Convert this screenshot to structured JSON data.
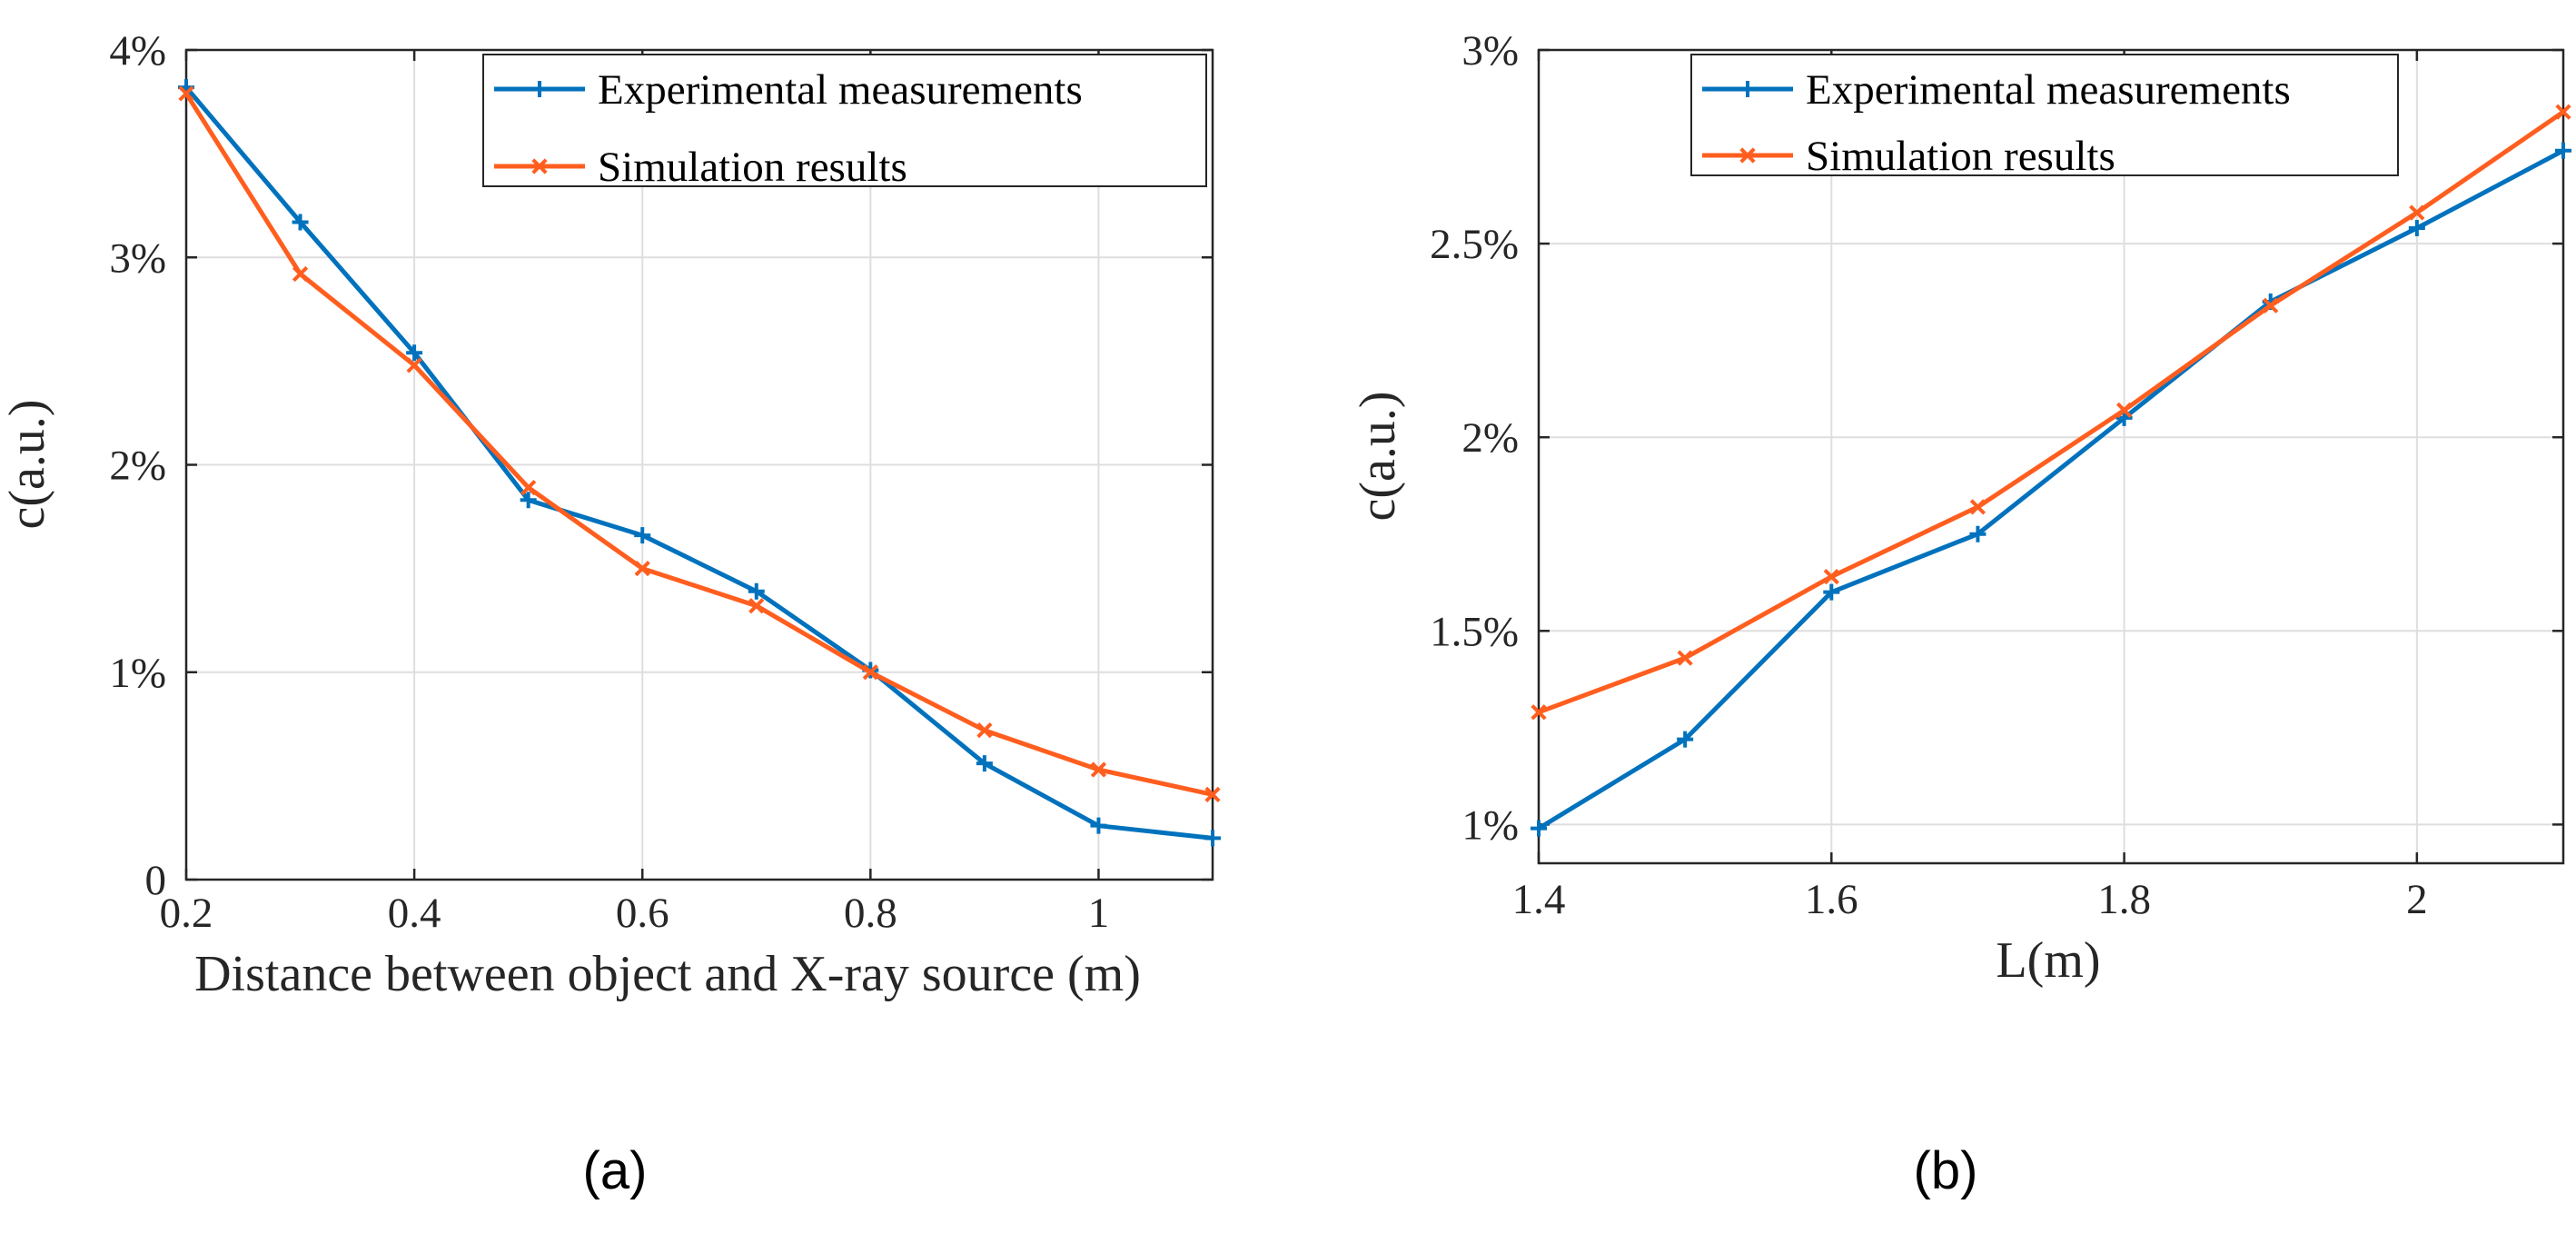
{
  "chart_data": [
    {
      "type": "line",
      "caption": "(a)",
      "title": "",
      "xlabel": "Distance between object and X-ray source (m)",
      "ylabel": "c(a.u.)",
      "xlim": [
        0.2,
        1.1
      ],
      "ylim": [
        0,
        4
      ],
      "xticks": [
        0.2,
        0.4,
        0.6,
        0.8,
        1.0
      ],
      "xtick_labels": [
        "0.2",
        "0.4",
        "0.6",
        "0.8",
        "1"
      ],
      "yticks": [
        0,
        1,
        2,
        3,
        4
      ],
      "ytick_labels": [
        "0",
        "1%",
        "2%",
        "3%",
        "4%"
      ],
      "grid": true,
      "legend_position": "top-right",
      "x": [
        0.2,
        0.3,
        0.4,
        0.5,
        0.6,
        0.7,
        0.8,
        0.9,
        1.0,
        1.1
      ],
      "series": [
        {
          "name": "Experimental measurements",
          "color": "#0072bd",
          "marker": "plus",
          "values": [
            3.82,
            3.17,
            2.54,
            1.83,
            1.66,
            1.39,
            1.01,
            0.56,
            0.26,
            0.2
          ]
        },
        {
          "name": "Simulation results",
          "color": "#ff5e1f",
          "marker": "x",
          "values": [
            3.79,
            2.92,
            2.48,
            1.89,
            1.5,
            1.32,
            1.0,
            0.72,
            0.53,
            0.41
          ]
        }
      ]
    },
    {
      "type": "line",
      "caption": "(b)",
      "title": "",
      "xlabel": "L(m)",
      "ylabel": "c(a.u.)",
      "xlim": [
        1.4,
        2.1
      ],
      "ylim": [
        0.9,
        3.0
      ],
      "xticks": [
        1.4,
        1.6,
        1.8,
        2.0
      ],
      "xtick_labels": [
        "1.4",
        "1.6",
        "1.8",
        "2"
      ],
      "yticks": [
        1.0,
        1.5,
        2.0,
        2.5,
        3.0
      ],
      "ytick_labels": [
        "1%",
        "1.5%",
        "2%",
        "2.5%",
        "3%"
      ],
      "grid": true,
      "legend_position": "top-left",
      "x": [
        1.4,
        1.5,
        1.6,
        1.7,
        1.8,
        1.9,
        2.0,
        2.1
      ],
      "series": [
        {
          "name": "Experimental measurements",
          "color": "#0072bd",
          "marker": "plus",
          "values": [
            0.99,
            1.22,
            1.6,
            1.75,
            2.05,
            2.35,
            2.54,
            2.74
          ]
        },
        {
          "name": "Simulation results",
          "color": "#ff5e1f",
          "marker": "x",
          "values": [
            1.29,
            1.43,
            1.64,
            1.82,
            2.07,
            2.34,
            2.58,
            2.84
          ]
        }
      ]
    }
  ]
}
